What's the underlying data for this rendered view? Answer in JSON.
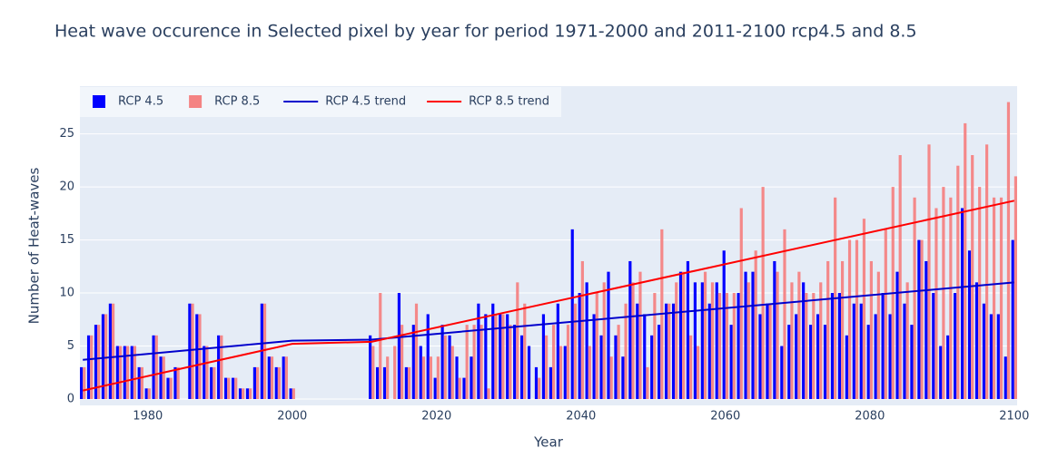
{
  "chart_data": {
    "type": "bar",
    "title": "Heat wave occurence in Selected pixel by year for period 1971-2000 and 2011-2100 rcp4.5 and 8.5",
    "x_label": "Year",
    "y_label": "Number of Heat-waves",
    "x": [
      1971,
      1972,
      1973,
      1974,
      1975,
      1976,
      1977,
      1978,
      1979,
      1980,
      1981,
      1982,
      1983,
      1984,
      1985,
      1986,
      1987,
      1988,
      1989,
      1990,
      1991,
      1992,
      1993,
      1994,
      1995,
      1996,
      1997,
      1998,
      1999,
      2000,
      2011,
      2012,
      2013,
      2014,
      2015,
      2016,
      2017,
      2018,
      2019,
      2020,
      2021,
      2022,
      2023,
      2024,
      2025,
      2026,
      2027,
      2028,
      2029,
      2030,
      2031,
      2032,
      2033,
      2034,
      2035,
      2036,
      2037,
      2038,
      2039,
      2040,
      2041,
      2042,
      2043,
      2044,
      2045,
      2046,
      2047,
      2048,
      2049,
      2050,
      2051,
      2052,
      2053,
      2054,
      2055,
      2056,
      2057,
      2058,
      2059,
      2060,
      2061,
      2062,
      2063,
      2064,
      2065,
      2066,
      2067,
      2068,
      2069,
      2070,
      2071,
      2072,
      2073,
      2074,
      2075,
      2076,
      2077,
      2078,
      2079,
      2080,
      2081,
      2082,
      2083,
      2084,
      2085,
      2086,
      2087,
      2088,
      2089,
      2090,
      2091,
      2092,
      2093,
      2094,
      2095,
      2096,
      2097,
      2098,
      2099,
      2100
    ],
    "series": [
      {
        "name": "RCP 4.5",
        "color": "#0000ff",
        "values": [
          3,
          6,
          7,
          8,
          9,
          5,
          5,
          5,
          3,
          1,
          6,
          4,
          2,
          3,
          0,
          9,
          8,
          5,
          3,
          6,
          2,
          2,
          1,
          1,
          3,
          9,
          4,
          3,
          4,
          1,
          6,
          3,
          3,
          0,
          10,
          3,
          7,
          5,
          8,
          2,
          7,
          6,
          4,
          2,
          4,
          9,
          8,
          9,
          8,
          8,
          7,
          6,
          5,
          3,
          8,
          3,
          9,
          5,
          16,
          10,
          11,
          8,
          6,
          12,
          6,
          4,
          13,
          9,
          8,
          6,
          7,
          9,
          9,
          12,
          13,
          11,
          11,
          9,
          11,
          14,
          7,
          10,
          12,
          12,
          8,
          9,
          13,
          5,
          7,
          8,
          11,
          7,
          8,
          7,
          10,
          10,
          6,
          9,
          9,
          7,
          8,
          10,
          8,
          12,
          9,
          7,
          15,
          13,
          10,
          5,
          6,
          10,
          18,
          14,
          11,
          9,
          8,
          8,
          4,
          15
        ]
      },
      {
        "name": "RCP 8.5",
        "color": "#f48383",
        "values": [
          3,
          6,
          7,
          8,
          9,
          5,
          5,
          5,
          3,
          1,
          6,
          4,
          2,
          3,
          0,
          9,
          8,
          5,
          3,
          6,
          2,
          2,
          1,
          1,
          3,
          9,
          4,
          3,
          4,
          1,
          5,
          10,
          4,
          5,
          7,
          3,
          9,
          4,
          4,
          4,
          6,
          5,
          2,
          7,
          7,
          7,
          1,
          8,
          8,
          7,
          11,
          9,
          0,
          2,
          6,
          7,
          5,
          7,
          9,
          13,
          5,
          10,
          11,
          4,
          7,
          9,
          11,
          12,
          3,
          10,
          16,
          9,
          11,
          12,
          6,
          5,
          12,
          11,
          10,
          10,
          10,
          18,
          11,
          14,
          20,
          9,
          12,
          16,
          11,
          12,
          10,
          10,
          11,
          13,
          19,
          13,
          15,
          15,
          17,
          13,
          12,
          16,
          20,
          23,
          11,
          19,
          15,
          24,
          18,
          20,
          19,
          22,
          26,
          23,
          20,
          24,
          19,
          19,
          28,
          21
        ]
      },
      {
        "name": "RCP 4.5 trend",
        "type": "line",
        "color": "#0000cc",
        "x": [
          1971,
          2000,
          2011,
          2100
        ],
        "values": [
          3.7,
          5.5,
          5.6,
          11
        ]
      },
      {
        "name": "RCP 8.5 trend",
        "type": "line",
        "color": "#ff0000",
        "x": [
          1971,
          2000,
          2011,
          2100
        ],
        "values": [
          0.8,
          5.2,
          5.4,
          18.7
        ]
      }
    ],
    "xlim": [
      1970.6,
      2100.4
    ],
    "xticks": [
      1980,
      2000,
      2020,
      2040,
      2060,
      2080,
      2100
    ],
    "ylim": [
      -0.6,
      29.5
    ],
    "yticks": [
      0,
      5,
      10,
      15,
      20,
      25
    ],
    "grid": true,
    "legend": "top-left"
  }
}
